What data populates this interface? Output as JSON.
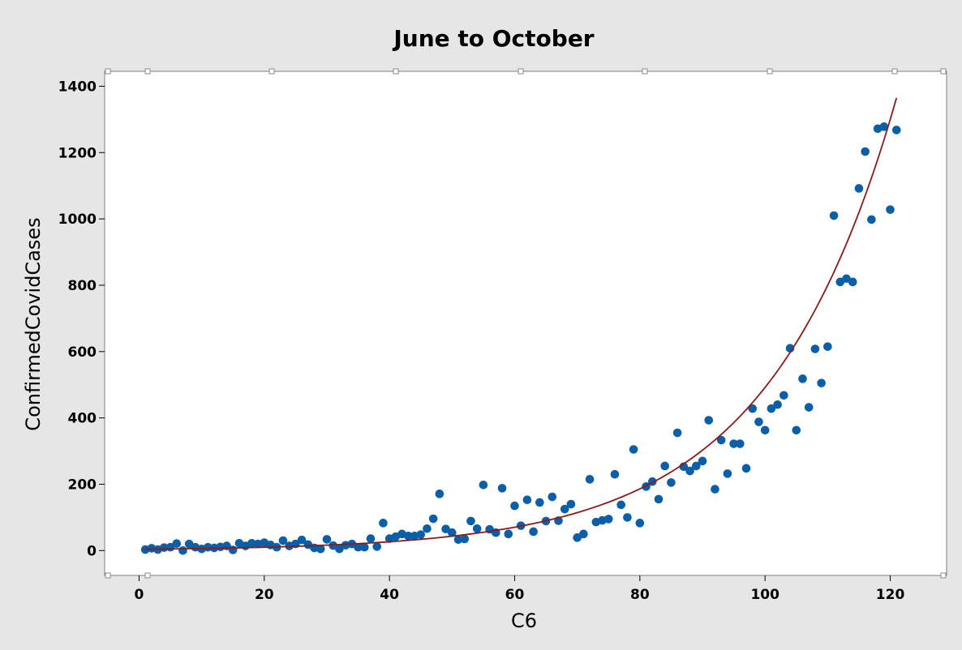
{
  "chart_data": {
    "type": "scatter",
    "title": "June to October",
    "xlabel": "C6",
    "ylabel": "ConfirmedCovidCases",
    "xlim": [
      -5.5,
      129
    ],
    "ylim": [
      -75,
      1445
    ],
    "xticks": [
      0,
      20,
      40,
      60,
      80,
      100,
      120
    ],
    "yticks": [
      0,
      200,
      400,
      600,
      800,
      1000,
      1200,
      1400
    ],
    "grid": false,
    "legend": "none",
    "colors": {
      "points": "#0b5ea8",
      "fit": "#8b1a1a",
      "plot_bg": "#ffffff",
      "frame_bg": "#e6e6e6"
    },
    "series": [
      {
        "values": [
          [
            1,
            3
          ],
          [
            2,
            7
          ],
          [
            3,
            3
          ],
          [
            4,
            9
          ],
          [
            5,
            10
          ],
          [
            6,
            21
          ],
          [
            7,
            0
          ],
          [
            8,
            20
          ],
          [
            9,
            10
          ],
          [
            10,
            5
          ],
          [
            11,
            10
          ],
          [
            12,
            8
          ],
          [
            13,
            11
          ],
          [
            14,
            14
          ],
          [
            15,
            2
          ],
          [
            16,
            22
          ],
          [
            17,
            14
          ],
          [
            18,
            22
          ],
          [
            19,
            20
          ],
          [
            20,
            24
          ],
          [
            21,
            17
          ],
          [
            22,
            10
          ],
          [
            23,
            30
          ],
          [
            24,
            14
          ],
          [
            25,
            20
          ],
          [
            26,
            32
          ],
          [
            27,
            18
          ],
          [
            28,
            8
          ],
          [
            29,
            5
          ],
          [
            30,
            34
          ],
          [
            31,
            15
          ],
          [
            32,
            5
          ],
          [
            33,
            16
          ],
          [
            34,
            20
          ],
          [
            35,
            10
          ],
          [
            36,
            10
          ],
          [
            37,
            36
          ],
          [
            38,
            12
          ],
          [
            39,
            83
          ],
          [
            40,
            36
          ],
          [
            41,
            42
          ],
          [
            42,
            50
          ],
          [
            43,
            44
          ],
          [
            44,
            44
          ],
          [
            45,
            48
          ],
          [
            46,
            66
          ],
          [
            47,
            96
          ],
          [
            48,
            171
          ],
          [
            49,
            65
          ],
          [
            50,
            54
          ],
          [
            51,
            33
          ],
          [
            52,
            35
          ],
          [
            53,
            89
          ],
          [
            54,
            66
          ],
          [
            55,
            198
          ],
          [
            56,
            64
          ],
          [
            57,
            54
          ],
          [
            58,
            188
          ],
          [
            59,
            50
          ],
          [
            60,
            135
          ],
          [
            61,
            75
          ],
          [
            62,
            153
          ],
          [
            63,
            57
          ],
          [
            64,
            145
          ],
          [
            65,
            89
          ],
          [
            66,
            162
          ],
          [
            67,
            90
          ],
          [
            68,
            125
          ],
          [
            69,
            140
          ],
          [
            70,
            39
          ],
          [
            71,
            50
          ],
          [
            72,
            215
          ],
          [
            73,
            86
          ],
          [
            74,
            91
          ],
          [
            75,
            95
          ],
          [
            76,
            230
          ],
          [
            77,
            138
          ],
          [
            78,
            100
          ],
          [
            79,
            305
          ],
          [
            80,
            83
          ],
          [
            81,
            193
          ],
          [
            82,
            208
          ],
          [
            83,
            155
          ],
          [
            84,
            255
          ],
          [
            85,
            205
          ],
          [
            86,
            355
          ],
          [
            87,
            253
          ],
          [
            88,
            240
          ],
          [
            89,
            255
          ],
          [
            90,
            270
          ],
          [
            91,
            393
          ],
          [
            92,
            185
          ],
          [
            93,
            333
          ],
          [
            94,
            232
          ],
          [
            95,
            322
          ],
          [
            96,
            322
          ],
          [
            97,
            248
          ],
          [
            98,
            428
          ],
          [
            99,
            388
          ],
          [
            100,
            363
          ],
          [
            101,
            428
          ],
          [
            102,
            440
          ],
          [
            103,
            468
          ],
          [
            104,
            610
          ],
          [
            105,
            363
          ],
          [
            106,
            518
          ],
          [
            107,
            432
          ],
          [
            108,
            608
          ],
          [
            109,
            505
          ],
          [
            110,
            615
          ],
          [
            111,
            1010
          ],
          [
            112,
            810
          ],
          [
            113,
            820
          ],
          [
            114,
            810
          ],
          [
            115,
            1092
          ],
          [
            116,
            1203
          ],
          [
            117,
            998
          ],
          [
            118,
            1272
          ],
          [
            119,
            1278
          ],
          [
            120,
            1028
          ],
          [
            121,
            1268
          ]
        ]
      }
    ],
    "fit": {
      "type": "exponential",
      "x_range": [
        1,
        121
      ],
      "y_at_start": 4,
      "y_at_end": 1365
    }
  }
}
